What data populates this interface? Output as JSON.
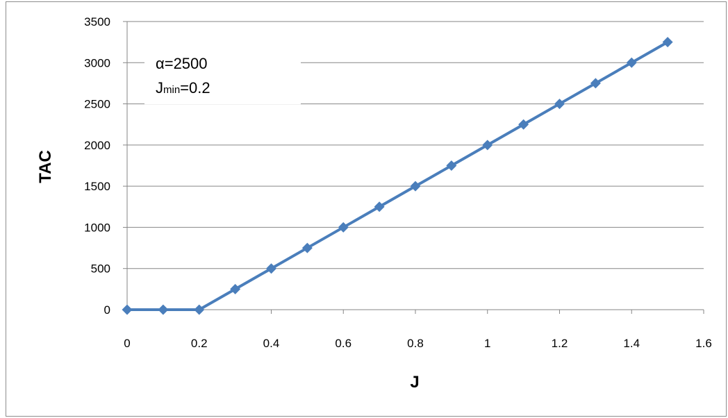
{
  "chart_data": {
    "type": "line",
    "xlabel": "J",
    "ylabel": "TAC",
    "xlim": [
      0,
      1.6
    ],
    "ylim": [
      0,
      3500
    ],
    "x_ticks": [
      "0",
      "0.2",
      "0.4",
      "0.6",
      "0.8",
      "1",
      "1.2",
      "1.4",
      "1.6"
    ],
    "y_ticks": [
      "0",
      "500",
      "1000",
      "1500",
      "2000",
      "2500",
      "3000",
      "3500"
    ],
    "grid": "horizontal",
    "legend": "none",
    "series": [
      {
        "color": "#4a7ebb",
        "marker": "diamond",
        "x": [
          0,
          0.1,
          0.2,
          0.3,
          0.4,
          0.5,
          0.6,
          0.7,
          0.8,
          0.9,
          1.0,
          1.1,
          1.2,
          1.3,
          1.4,
          1.5
        ],
        "y": [
          0,
          0,
          0,
          250,
          500,
          750,
          1000,
          1250,
          1500,
          1750,
          2000,
          2250,
          2500,
          2750,
          3000,
          3250
        ]
      }
    ],
    "annotations": {
      "alpha_text": "α=2500",
      "jmin_main": "J",
      "jmin_sub": "min",
      "jmin_value": "=0.2"
    }
  }
}
